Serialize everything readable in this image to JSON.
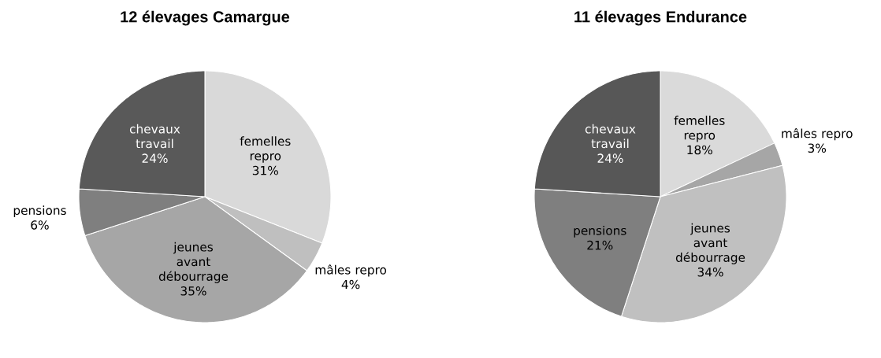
{
  "chart_data": [
    {
      "type": "pie",
      "title": "12 élevages Camargue",
      "categories": [
        "femelles repro",
        "mâles repro",
        "jeunes avant débourrage",
        "pensions",
        "chevaux travail"
      ],
      "values": [
        31,
        4,
        35,
        6,
        24
      ],
      "value_labels": [
        "31%",
        "4%",
        "35%",
        "6%",
        "24%"
      ],
      "colors": [
        "#d9d9d9",
        "#bfbfbf",
        "#a6a6a6",
        "#7f7f7f",
        "#595959"
      ]
    },
    {
      "type": "pie",
      "title": "11 élevages Endurance",
      "categories": [
        "femelles repro",
        "mâles repro",
        "jeunes avant débourrage",
        "pensions",
        "chevaux travail"
      ],
      "values": [
        18,
        3,
        34,
        21,
        24
      ],
      "value_labels": [
        "18%",
        "3%",
        "34%",
        "21%",
        "24%"
      ],
      "colors": [
        "#dadada",
        "#a6a6a6",
        "#c0c0c0",
        "#7f7f7f",
        "#575757"
      ]
    }
  ]
}
